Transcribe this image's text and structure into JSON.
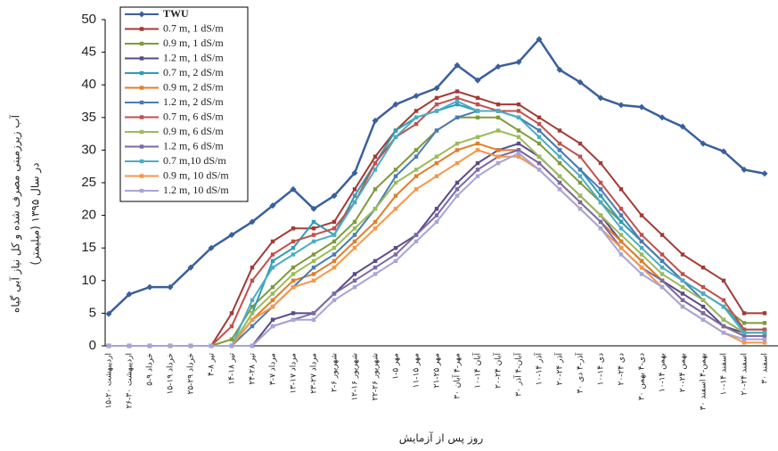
{
  "chart_data": {
    "type": "line",
    "y_label": [
      "آب زیرزمینی مصرف شده و کل نیاز آبی گیاه",
      "(میلیمتر) در سال ۱۳۹۵"
    ],
    "x_label": "روز پس از آزمایش",
    "categories": [
      "۱۵-۲۰ اردیبهشت",
      "۲۶-۳۰ اردیبهشت",
      "۵-۹ خرداد",
      "۱۵-۱۹ خرداد",
      "۲۵-۲۹ خرداد",
      "۴-۸ تیر",
      "۱۴-۱۸ تیر",
      "۲۴-۲۸ تیر",
      "۳-۷ مرداد",
      "۱۳-۱۷ مرداد",
      "۲۳-۲۷ مرداد",
      "۲-۶ شهریور",
      "۱۲-۱۶ شهریور",
      "۲۲-۲۶ شهریور",
      "۱-۵ مهر",
      "۱۱-۱۵ مهر",
      "۲۱-۲۵ مهر",
      "۳۰ مهر-۴ آبان",
      "۱۰-۱۴ آبان",
      "۲۰-۲۴ آبان",
      "۳۰ آبان-۴ آذر",
      "۱۰-۱۴ آذر",
      "۲۰-۲۴ آذر",
      "۳۰ آذر-۴ دی",
      "۱۰-۱۴ دی",
      "۲۰-۲۴ دی",
      "۳۰ دی-۴ بهمن",
      "۱۰-۱۴ بهمن",
      "۲۰-۲۴ بهمن",
      "۳۰ بهمن-۴ اسفند",
      "۱۰-۱۴ اسفند",
      "۲۰-۲۴ اسفند",
      "۳۰ اسفند"
    ],
    "ylim": [
      0,
      50
    ],
    "yticks": [
      0,
      5,
      10,
      15,
      20,
      25,
      30,
      35,
      40,
      45,
      50
    ],
    "series": [
      {
        "name": "TWU",
        "color": "#3a5f9e",
        "values": [
          4.9,
          7.9,
          9,
          9,
          12,
          15,
          17,
          19,
          21.5,
          24,
          21,
          23,
          26.5,
          34.5,
          37,
          38.3,
          39.5,
          43,
          40.7,
          42.8,
          43.5,
          47,
          42.3,
          40.4,
          38,
          36.9,
          36.6,
          35,
          33.6,
          31,
          29.8,
          27,
          26.4
        ]
      },
      {
        "name": "0.7 m, 1 dS/m",
        "color": "#a33a35",
        "values": [
          0,
          0,
          0,
          0,
          0,
          0,
          5,
          12,
          16,
          18,
          18,
          19,
          24,
          29,
          33,
          36,
          38,
          39,
          38,
          37,
          37,
          35,
          33,
          31,
          28,
          24,
          20,
          17,
          14,
          12,
          10,
          5,
          5
        ]
      },
      {
        "name": "0.9 m, 1 dS/m",
        "color": "#7f9a3c",
        "values": [
          0,
          0,
          0,
          0,
          0,
          0,
          1,
          6,
          9,
          12,
          14,
          16,
          19,
          24,
          27,
          30,
          33,
          35,
          35,
          35,
          33,
          31,
          28,
          25,
          22,
          19,
          16,
          13,
          10,
          8,
          6,
          3.5,
          3.5
        ]
      },
      {
        "name": "1.2 m, 1 dS/m",
        "color": "#5b4a8b",
        "values": [
          0,
          0,
          0,
          0,
          0,
          0,
          0,
          0,
          4,
          5,
          5,
          8,
          11,
          13,
          15,
          17,
          21,
          25,
          28,
          30,
          31,
          29,
          26,
          23,
          20,
          16,
          13,
          10,
          8,
          6,
          3,
          2,
          2
        ]
      },
      {
        "name": "0.7 m, 2 dS/m",
        "color": "#2e9eb5",
        "values": [
          0,
          0,
          0,
          0,
          0,
          0,
          0,
          5,
          13,
          15,
          19,
          17,
          23,
          28,
          33,
          35,
          36,
          37,
          36,
          36,
          35,
          33,
          30,
          27,
          23,
          19,
          16,
          13,
          10,
          8,
          6,
          2.5,
          2.5
        ]
      },
      {
        "name": "0.9 m, 2 dS/m",
        "color": "#e07f2a",
        "values": [
          0,
          0,
          0,
          0,
          0,
          0,
          0,
          4,
          7,
          10,
          11,
          13,
          16,
          19,
          23,
          26,
          28,
          30,
          31,
          30,
          30,
          28,
          25,
          22,
          19,
          16,
          13,
          10,
          7,
          5,
          3,
          1.5,
          1.5
        ]
      },
      {
        "name": "1.2 m, 2 dS/m",
        "color": "#4a7bb5",
        "values": [
          0,
          0,
          0,
          0,
          0,
          0,
          0,
          3,
          6,
          9,
          12,
          14,
          17,
          21,
          26,
          29,
          33,
          35,
          36,
          36,
          35,
          33,
          30,
          27,
          24,
          20,
          16,
          13,
          10,
          7,
          4,
          2,
          2
        ]
      },
      {
        "name": "0.7 m, 6 dS/m",
        "color": "#c0504d",
        "values": [
          0,
          0,
          0,
          0,
          0,
          0,
          3,
          10,
          14,
          16,
          17,
          18,
          22,
          28,
          32,
          34,
          37,
          38,
          37,
          36,
          36,
          34,
          31,
          29,
          25,
          21,
          17,
          14,
          11,
          9,
          7,
          2.5,
          2.5
        ]
      },
      {
        "name": "0.9 m, 6 dS/m",
        "color": "#9bbb59",
        "values": [
          0,
          0,
          0,
          0,
          0,
          0,
          0,
          5,
          8,
          11,
          13,
          15,
          18,
          21,
          25,
          27,
          29,
          31,
          32,
          33,
          32,
          29,
          26,
          23,
          20,
          17,
          14,
          11,
          9,
          7,
          4,
          2,
          2
        ]
      },
      {
        "name": "1.2 m, 6 dS/m",
        "color": "#7b6aa6",
        "values": [
          0,
          0,
          0,
          0,
          0,
          0,
          0,
          0,
          3,
          4,
          5,
          8,
          10,
          12,
          14,
          17,
          20,
          24,
          27,
          29,
          30,
          28,
          25,
          22,
          19,
          15,
          12,
          10,
          7,
          5,
          3,
          1.5,
          1.5
        ]
      },
      {
        "name": "0.7 m,10 dS/m",
        "color": "#4bacc6",
        "values": [
          0,
          0,
          0,
          0,
          0,
          0,
          0,
          7,
          12,
          14,
          16,
          17,
          22,
          27,
          32,
          35,
          36,
          37.5,
          36,
          36,
          35,
          32,
          29,
          26,
          22,
          18,
          15,
          12,
          10,
          8,
          6,
          2,
          2
        ]
      },
      {
        "name": "0.9 m, 10 dS/m",
        "color": "#f79646",
        "values": [
          0,
          0,
          0,
          0,
          0,
          0,
          0,
          4,
          6,
          9,
          10,
          12,
          15,
          18,
          21,
          24,
          26,
          28,
          30,
          29,
          29,
          27,
          24,
          21,
          18,
          15,
          12,
          9,
          6,
          4,
          2,
          0.5,
          0.5
        ]
      },
      {
        "name": "1.2 m, 10 dS/m",
        "color": "#a5a5d8",
        "values": [
          0,
          0,
          0,
          0,
          0,
          0,
          0,
          0,
          3,
          4,
          4,
          7,
          9,
          11,
          13,
          16,
          19,
          23,
          26,
          28,
          29.5,
          27,
          24,
          21,
          18,
          14,
          11,
          9,
          6,
          4,
          2,
          1,
          1
        ]
      }
    ]
  }
}
